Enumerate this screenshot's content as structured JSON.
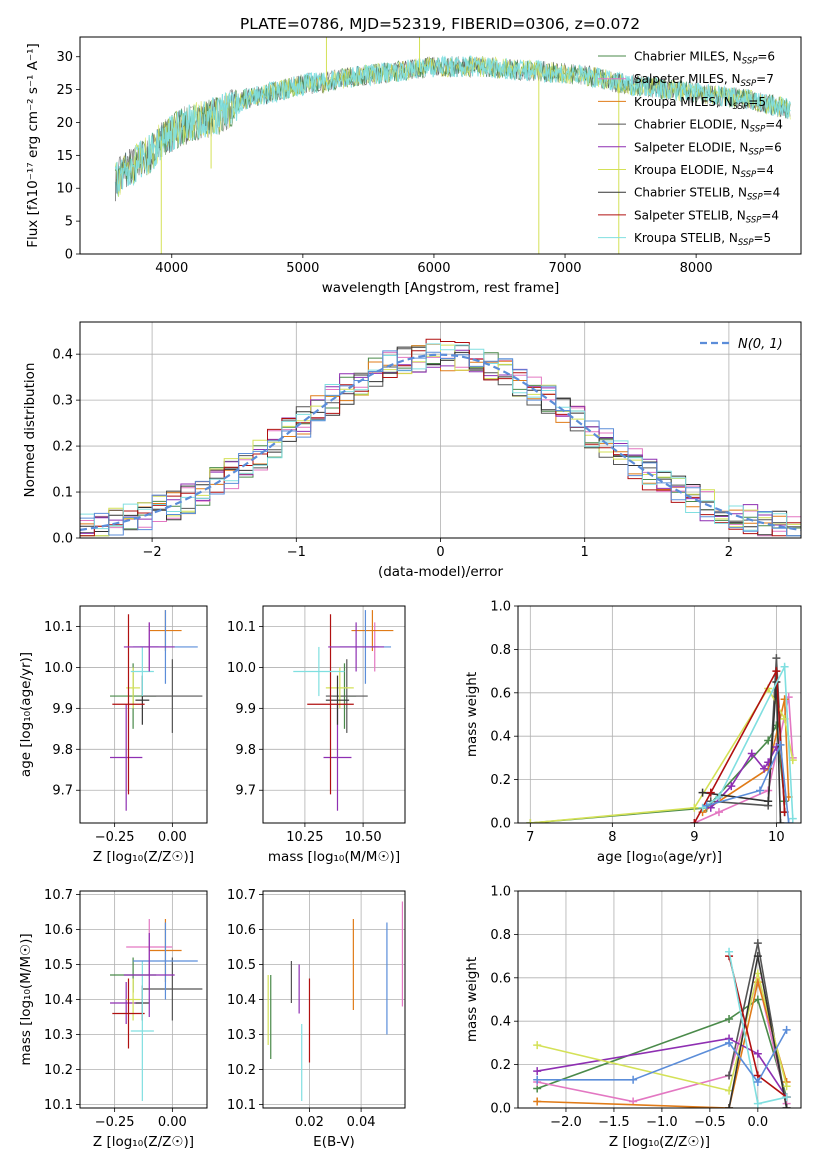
{
  "title": "PLATE=0786, MJD=52319, FIBERID=0306, z=0.072",
  "chart_data": [
    {
      "id": "spectrum",
      "type": "line",
      "title": "PLATE=0786, MJD=52319, FIBERID=0306, z=0.072",
      "xlabel": "wavelength [Angstrom, rest frame]",
      "ylabel": "Flux [f_λ 10^-17 erg cm^-2 s^-1 A^-1]",
      "xlim": [
        3300,
        8800
      ],
      "ylim": [
        0,
        33
      ],
      "xticks": [
        4000,
        5000,
        6000,
        7000,
        8000
      ],
      "yticks": [
        0,
        5,
        10,
        15,
        20,
        25,
        30
      ],
      "legend_position": "upper right",
      "series": [
        {
          "name": "Chabrier MILES, N_SSP=6",
          "color": "#4a8a4a"
        },
        {
          "name": "Salpeter MILES, N_SSP=7",
          "color": "#e377c2"
        },
        {
          "name": "Kroupa MILES, N_SSP=5",
          "color": "#e07b18"
        },
        {
          "name": "Chabrier ELODIE, N_SSP=4",
          "color": "#555555"
        },
        {
          "name": "Salpeter ELODIE, N_SSP=6",
          "color": "#8e2fb2"
        },
        {
          "name": "Kroupa ELODIE, N_SSP=4",
          "color": "#d4e157"
        },
        {
          "name": "Chabrier STELIB, N_SSP=4",
          "color": "#333333"
        },
        {
          "name": "Salpeter STELIB, N_SSP=4",
          "color": "#b01010"
        },
        {
          "name": "Kroupa STELIB, N_SSP=5",
          "color": "#80dfe0"
        }
      ],
      "envelope": [
        [
          3570,
          11
        ],
        [
          3650,
          13
        ],
        [
          3750,
          14
        ],
        [
          3850,
          15.5
        ],
        [
          3950,
          18
        ],
        [
          4050,
          19
        ],
        [
          4150,
          20
        ],
        [
          4250,
          20.5
        ],
        [
          4350,
          21
        ],
        [
          4450,
          22
        ],
        [
          4550,
          23.5
        ],
        [
          4650,
          24
        ],
        [
          4750,
          24.5
        ],
        [
          4850,
          25
        ],
        [
          4950,
          25.5
        ],
        [
          5050,
          26
        ],
        [
          5150,
          26
        ],
        [
          5250,
          26.5
        ],
        [
          5400,
          27
        ],
        [
          5600,
          27.5
        ],
        [
          5800,
          28
        ],
        [
          6000,
          28.5
        ],
        [
          6200,
          28.5
        ],
        [
          6400,
          28.5
        ],
        [
          6600,
          28
        ],
        [
          6800,
          27.8
        ],
        [
          7000,
          27.5
        ],
        [
          7200,
          27
        ],
        [
          7400,
          26
        ],
        [
          7600,
          25.5
        ],
        [
          7800,
          25
        ],
        [
          8000,
          24.5
        ],
        [
          8200,
          24
        ],
        [
          8400,
          23.5
        ],
        [
          8600,
          22.5
        ],
        [
          8720,
          22
        ]
      ]
    },
    {
      "id": "residual-histogram",
      "type": "line",
      "xlabel": "(data-model)/error",
      "ylabel": "Normed distribution",
      "xlim": [
        -2.5,
        2.5
      ],
      "ylim": [
        0,
        0.47
      ],
      "xticks": [
        -2,
        -1,
        0,
        1,
        2
      ],
      "yticks": [
        0.0,
        0.1,
        0.2,
        0.3,
        0.4
      ],
      "legend": [
        {
          "name": "N(0,1)",
          "color": "#5b8dd9"
        }
      ],
      "legend_position": "upper right",
      "bins": {
        "start": -2.5,
        "width": 0.1
      }
    },
    {
      "id": "age-vs-Z",
      "type": "scatter",
      "xlabel": "Z [log10(Z/Z_sun)]",
      "ylabel": "age [log10(age/yr)]",
      "xlim": [
        -0.4,
        0.15
      ],
      "ylim": [
        9.62,
        10.15
      ],
      "xticks": [
        -0.25,
        0.0
      ],
      "yticks": [
        9.7,
        9.8,
        9.9,
        10.0,
        10.1
      ],
      "points": [
        {
          "x": -0.17,
          "y": 9.93,
          "xerr": 0.1,
          "yerr": 0.08,
          "color": "#4a8a4a"
        },
        {
          "x": -0.1,
          "y": 10.05,
          "xerr": 0.04,
          "yerr": 0.06,
          "color": "#e377c2"
        },
        {
          "x": -0.03,
          "y": 10.09,
          "xerr": 0.07,
          "yerr": 0.05,
          "color": "#e07b18"
        },
        {
          "x": 0.0,
          "y": 9.93,
          "xerr": 0.13,
          "yerr": 0.09,
          "color": "#555555"
        },
        {
          "x": -0.2,
          "y": 9.78,
          "xerr": 0.07,
          "yerr": 0.13,
          "color": "#8e2fb2"
        },
        {
          "x": -0.17,
          "y": 9.95,
          "xerr": 0.03,
          "yerr": 0.05,
          "color": "#d4e157"
        },
        {
          "x": -0.13,
          "y": 9.92,
          "xerr": 0.03,
          "yerr": 0.06,
          "color": "#333333"
        },
        {
          "x": -0.19,
          "y": 9.91,
          "xerr": 0.07,
          "yerr": 0.22,
          "color": "#b01010"
        },
        {
          "x": -0.13,
          "y": 9.99,
          "xerr": 0.05,
          "yerr": 0.06,
          "color": "#80dfe0"
        },
        {
          "x": -0.03,
          "y": 10.05,
          "xerr": 0.14,
          "yerr": 0.09,
          "color": "#5b8dd9"
        },
        {
          "x": -0.1,
          "y": 10.05,
          "xerr": 0.11,
          "yerr": 0.06,
          "color": "#8e2fb2"
        }
      ]
    },
    {
      "id": "age-vs-mass",
      "type": "scatter",
      "xlabel": "mass [log10(M/M_sun)]",
      "ylabel": "",
      "xlim": [
        10.07,
        10.68
      ],
      "ylim": [
        9.62,
        10.15
      ],
      "xticks": [
        10.25,
        10.5
      ],
      "yticks": [
        9.7,
        9.8,
        9.9,
        10.0,
        10.1
      ],
      "points": [
        {
          "x": 10.42,
          "y": 9.93,
          "xerr": 0.05,
          "yerr": 0.08,
          "color": "#4a8a4a"
        },
        {
          "x": 10.55,
          "y": 10.05,
          "xerr": 0.02,
          "yerr": 0.06,
          "color": "#e377c2"
        },
        {
          "x": 10.54,
          "y": 10.09,
          "xerr": 0.09,
          "yerr": 0.05,
          "color": "#e07b18"
        },
        {
          "x": 10.43,
          "y": 9.93,
          "xerr": 0.09,
          "yerr": 0.09,
          "color": "#555555"
        },
        {
          "x": 10.39,
          "y": 9.78,
          "xerr": 0.06,
          "yerr": 0.13,
          "color": "#8e2fb2"
        },
        {
          "x": 10.4,
          "y": 9.95,
          "xerr": 0.06,
          "yerr": 0.05,
          "color": "#d4e157"
        },
        {
          "x": 10.39,
          "y": 9.92,
          "xerr": 0.05,
          "yerr": 0.06,
          "color": "#333333"
        },
        {
          "x": 10.36,
          "y": 9.91,
          "xerr": 0.1,
          "yerr": 0.22,
          "color": "#b01010"
        },
        {
          "x": 10.31,
          "y": 9.99,
          "xerr": 0.11,
          "yerr": 0.06,
          "color": "#80dfe0"
        },
        {
          "x": 10.51,
          "y": 10.05,
          "xerr": 0.11,
          "yerr": 0.09,
          "color": "#5b8dd9"
        },
        {
          "x": 10.47,
          "y": 10.05,
          "xerr": 0.12,
          "yerr": 0.06,
          "color": "#8e2fb2"
        }
      ]
    },
    {
      "id": "mass-weight-vs-age",
      "type": "line",
      "xlabel": "age [log10(age/yr)]",
      "ylabel": "mass weight",
      "xlim": [
        6.85,
        10.3
      ],
      "ylim": [
        0,
        1.0
      ],
      "xticks": [
        7,
        8,
        9,
        10
      ],
      "yticks": [
        0.0,
        0.2,
        0.4,
        0.6,
        0.8,
        1.0
      ],
      "series": [
        {
          "color": "#4a8a4a",
          "points": [
            [
              7.0,
              0.0
            ],
            [
              9.15,
              0.07
            ],
            [
              9.9,
              0.38
            ],
            [
              10.0,
              0.45
            ],
            [
              10.1,
              0.1
            ]
          ]
        },
        {
          "color": "#e377c2",
          "points": [
            [
              9.0,
              0.0
            ],
            [
              9.3,
              0.05
            ],
            [
              9.9,
              0.15
            ],
            [
              10.15,
              0.58
            ],
            [
              10.2,
              0.3
            ]
          ]
        },
        {
          "color": "#e07b18",
          "points": [
            [
              9.1,
              0.05
            ],
            [
              9.9,
              0.25
            ],
            [
              10.1,
              0.57
            ],
            [
              10.15,
              0.12
            ]
          ]
        },
        {
          "color": "#555555",
          "points": [
            [
              9.2,
              0.1
            ],
            [
              9.9,
              0.08
            ],
            [
              10.0,
              0.76
            ],
            [
              10.1,
              0.05
            ]
          ]
        },
        {
          "color": "#8e2fb2",
          "points": [
            [
              9.2,
              0.07
            ],
            [
              9.45,
              0.17
            ],
            [
              9.7,
              0.32
            ],
            [
              9.85,
              0.25
            ],
            [
              9.9,
              0.28
            ],
            [
              10.0,
              0.35
            ]
          ]
        },
        {
          "color": "#d4e157",
          "points": [
            [
              7.0,
              0.0
            ],
            [
              9.0,
              0.07
            ],
            [
              9.9,
              0.62
            ],
            [
              10.1,
              0.48
            ],
            [
              10.2,
              0.29
            ]
          ]
        },
        {
          "color": "#333333",
          "points": [
            [
              9.1,
              0.14
            ],
            [
              9.9,
              0.1
            ],
            [
              10.0,
              0.65
            ],
            [
              10.05,
              0.0
            ]
          ]
        },
        {
          "color": "#b01010",
          "points": [
            [
              9.0,
              0.0
            ],
            [
              9.2,
              0.14
            ],
            [
              10.0,
              0.7
            ],
            [
              10.1,
              0.05
            ]
          ]
        },
        {
          "color": "#80dfe0",
          "points": [
            [
              9.1,
              0.07
            ],
            [
              9.3,
              0.12
            ],
            [
              10.1,
              0.72
            ],
            [
              10.2,
              0.02
            ]
          ]
        },
        {
          "color": "#5b8dd9",
          "points": [
            [
              9.15,
              0.08
            ],
            [
              9.8,
              0.15
            ],
            [
              10.05,
              0.36
            ],
            [
              10.15,
              0.0
            ]
          ]
        }
      ]
    },
    {
      "id": "mass-vs-Z",
      "type": "scatter",
      "xlabel": "Z [log10(Z/Z_sun)]",
      "ylabel": "mass [log10(M/M_sun)]",
      "xlim": [
        -0.4,
        0.15
      ],
      "ylim": [
        10.09,
        10.71
      ],
      "xticks": [
        -0.25,
        0.0
      ],
      "yticks": [
        10.1,
        10.2,
        10.3,
        10.4,
        10.5,
        10.6,
        10.7
      ],
      "points": [
        {
          "x": -0.17,
          "y": 10.47,
          "xerr": 0.1,
          "yerr": 0.05,
          "color": "#4a8a4a"
        },
        {
          "x": -0.1,
          "y": 10.55,
          "xerr": 0.1,
          "yerr": 0.08,
          "color": "#e377c2"
        },
        {
          "x": -0.03,
          "y": 10.54,
          "xerr": 0.07,
          "yerr": 0.09,
          "color": "#e07b18"
        },
        {
          "x": 0.0,
          "y": 10.43,
          "xerr": 0.13,
          "yerr": 0.09,
          "color": "#555555"
        },
        {
          "x": -0.2,
          "y": 10.39,
          "xerr": 0.07,
          "yerr": 0.06,
          "color": "#8e2fb2"
        },
        {
          "x": -0.17,
          "y": 10.4,
          "xerr": 0.03,
          "yerr": 0.06,
          "color": "#d4e157"
        },
        {
          "x": -0.13,
          "y": 10.39,
          "xerr": 0.03,
          "yerr": 0.05,
          "color": "#333333"
        },
        {
          "x": -0.19,
          "y": 10.36,
          "xerr": 0.07,
          "yerr": 0.1,
          "color": "#b01010"
        },
        {
          "x": -0.13,
          "y": 10.31,
          "xerr": 0.05,
          "yerr": 0.2,
          "color": "#80dfe0"
        },
        {
          "x": -0.03,
          "y": 10.51,
          "xerr": 0.14,
          "yerr": 0.11,
          "color": "#5b8dd9"
        },
        {
          "x": -0.1,
          "y": 10.47,
          "xerr": 0.11,
          "yerr": 0.12,
          "color": "#8e2fb2"
        }
      ]
    },
    {
      "id": "mass-vs-EBV",
      "type": "scatter",
      "xlabel": "E(B-V)",
      "ylabel": "",
      "xlim": [
        0.002,
        0.057
      ],
      "ylim": [
        10.09,
        10.71
      ],
      "xticks": [
        0.02,
        0.04
      ],
      "yticks": [
        10.1,
        10.2,
        10.3,
        10.4,
        10.5,
        10.6,
        10.7
      ],
      "points": [
        {
          "x": 0.005,
          "y": 10.35,
          "yerr": 0.12,
          "color": "#4a8a4a"
        },
        {
          "x": 0.004,
          "y": 10.37,
          "yerr": 0.1,
          "color": "#d4e157"
        },
        {
          "x": 0.013,
          "y": 10.45,
          "yerr": 0.06,
          "color": "#555555"
        },
        {
          "x": 0.016,
          "y": 10.43,
          "yerr": 0.07,
          "color": "#8e2fb2"
        },
        {
          "x": 0.017,
          "y": 10.22,
          "yerr": 0.11,
          "color": "#80dfe0"
        },
        {
          "x": 0.02,
          "y": 10.34,
          "yerr": 0.12,
          "color": "#b01010"
        },
        {
          "x": 0.037,
          "y": 10.5,
          "yerr": 0.13,
          "color": "#e07b18"
        },
        {
          "x": 0.05,
          "y": 10.46,
          "yerr": 0.16,
          "color": "#5b8dd9"
        },
        {
          "x": 0.056,
          "y": 10.53,
          "yerr": 0.15,
          "color": "#e377c2"
        }
      ]
    },
    {
      "id": "mass-weight-vs-Z",
      "type": "line",
      "xlabel": "Z [log10(Z/Z_sun)]",
      "ylabel": "mass weight",
      "xlim": [
        -2.5,
        0.45
      ],
      "ylim": [
        0,
        1.0
      ],
      "xticks": [
        -2.0,
        -1.5,
        -1.0,
        -0.5,
        0.0
      ],
      "yticks": [
        0.0,
        0.2,
        0.4,
        0.6,
        0.8,
        1.0
      ],
      "series": [
        {
          "color": "#4a8a4a",
          "points": [
            [
              -2.3,
              0.09
            ],
            [
              -0.3,
              0.41
            ],
            [
              0.0,
              0.5
            ],
            [
              0.3,
              0.05
            ]
          ]
        },
        {
          "color": "#e377c2",
          "points": [
            [
              -2.3,
              0.12
            ],
            [
              -1.3,
              0.03
            ],
            [
              -0.3,
              0.15
            ],
            [
              0.0,
              0.6
            ],
            [
              0.3,
              0.02
            ]
          ]
        },
        {
          "color": "#e07b18",
          "points": [
            [
              -2.3,
              0.03
            ],
            [
              -0.3,
              0.0
            ],
            [
              0.0,
              0.58
            ],
            [
              0.3,
              0.12
            ]
          ]
        },
        {
          "color": "#555555",
          "points": [
            [
              -0.3,
              0.15
            ],
            [
              0.0,
              0.76
            ],
            [
              0.3,
              0.0
            ]
          ]
        },
        {
          "color": "#8e2fb2",
          "points": [
            [
              -2.3,
              0.17
            ],
            [
              -0.3,
              0.32
            ],
            [
              0.0,
              0.25
            ],
            [
              0.3,
              0.05
            ]
          ]
        },
        {
          "color": "#d4e157",
          "points": [
            [
              -2.3,
              0.29
            ],
            [
              -0.3,
              0.08
            ],
            [
              0.0,
              0.62
            ],
            [
              0.3,
              0.1
            ]
          ]
        },
        {
          "color": "#333333",
          "points": [
            [
              -0.3,
              0.0
            ],
            [
              0.0,
              0.7
            ],
            [
              0.3,
              0.0
            ]
          ]
        },
        {
          "color": "#b01010",
          "points": [
            [
              -0.3,
              0.7
            ],
            [
              0.0,
              0.15
            ],
            [
              0.3,
              0.05
            ]
          ]
        },
        {
          "color": "#80dfe0",
          "points": [
            [
              -0.3,
              0.72
            ],
            [
              0.0,
              0.02
            ],
            [
              0.3,
              0.05
            ]
          ]
        },
        {
          "color": "#5b8dd9",
          "points": [
            [
              -2.3,
              0.13
            ],
            [
              -1.3,
              0.13
            ],
            [
              -0.3,
              0.3
            ],
            [
              0.0,
              0.12
            ],
            [
              0.3,
              0.36
            ]
          ]
        }
      ]
    }
  ]
}
